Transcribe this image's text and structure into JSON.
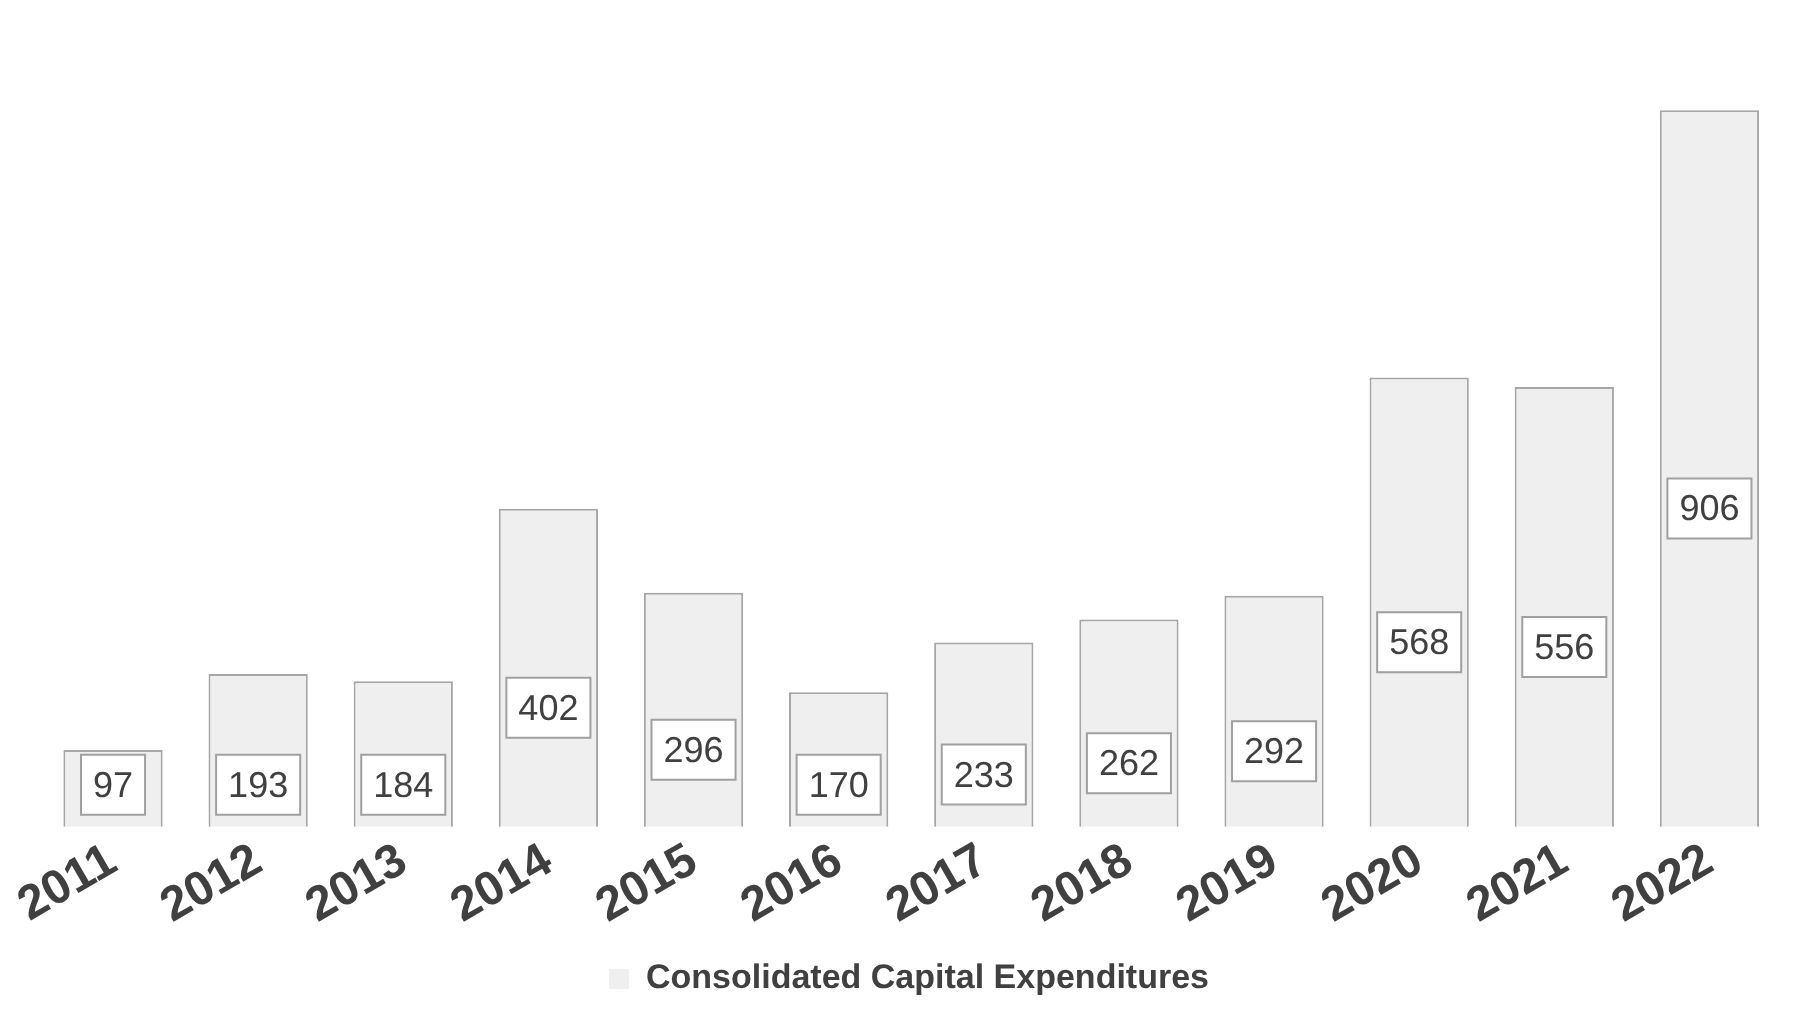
{
  "chart_data": {
    "type": "bar",
    "categories": [
      "2011",
      "2012",
      "2013",
      "2014",
      "2015",
      "2016",
      "2017",
      "2018",
      "2019",
      "2020",
      "2021",
      "2022"
    ],
    "series": [
      {
        "name": "Consolidated Capital Expenditures",
        "color": "#efefef",
        "values": [
          97,
          193,
          184,
          402,
          296,
          170,
          233,
          262,
          292,
          568,
          556,
          906
        ]
      }
    ],
    "data_labels": true,
    "legend": "bottom",
    "grid": false,
    "tick_labels": "x"
  }
}
